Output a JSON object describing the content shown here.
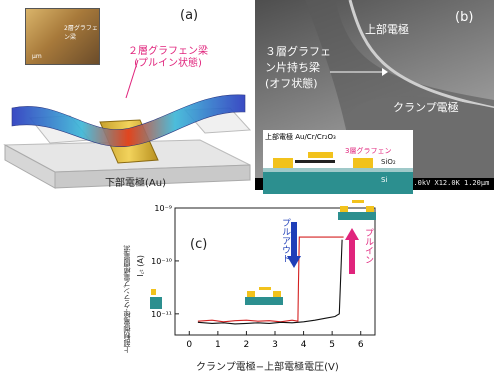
{
  "panel_a": {
    "label": "(a)",
    "inset_text_top": "2層グラフェン梁",
    "inset_text_um": "μm",
    "beam_label_line1": "２層グラフェン梁",
    "beam_label_line2": "(プルイン状態)",
    "electrode_label": "下部電極(Au)"
  },
  "panel_b": {
    "label": "(b)",
    "beam_text_line1": "３層グラフェ",
    "beam_text_line2": "ン片持ち梁",
    "beam_text_line3": "(オフ状態)",
    "top_electrode": "上部電極",
    "clamp_electrode": "クランプ電極",
    "scale_text": "10.0kV  X12.0K  1.20μm",
    "cross_section_electrode": "上部電極 Au/Cr/Cr₂O₃",
    "cross_section_graphene": "3層グラフェン",
    "cross_section_sio2": "SiO₂",
    "cross_section_si": "Si"
  },
  "panel_c": {
    "label": "(c)",
    "ylabel_side": "上部制御電極-クランプ電極間電流",
    "ylabel_symbol": "I꜀ₜ (A)",
    "xlabel": "クランプ電極−上部電極電圧(V)",
    "y_tick_labels": [
      "10⁻⁹",
      "10⁻¹⁰",
      "10⁻¹¹"
    ],
    "x_tick_labels": [
      "0",
      "1",
      "2",
      "3",
      "4",
      "5",
      "6"
    ],
    "pull_out_label": "プルアウト",
    "pull_in_label": "プルイン"
  },
  "chart_data": {
    "type": "line",
    "xlabel": "クランプ電極−上部電極電圧(V)",
    "ylabel": "I꜀ₜ (A)",
    "xlim": [
      -0.5,
      6.5
    ],
    "ylim": [
      -11.4,
      -9
    ],
    "yscale": "log",
    "series": [
      {
        "color": "#d42020",
        "x": [
          0.3,
          0.8,
          1.2,
          1.6,
          2.0,
          2.4,
          2.8,
          3.2,
          3.6,
          3.8,
          3.82,
          3.85,
          4.5,
          5.0,
          5.3,
          5.4
        ],
        "y": [
          -11.14,
          -11.12,
          -11.15,
          -11.13,
          -11.12,
          -11.14,
          -11.13,
          -11.15,
          -11.12,
          -11.14,
          -10.5,
          -9.55,
          -9.55,
          -9.55,
          -9.55,
          -9.55
        ]
      },
      {
        "color": "#111111",
        "x": [
          0.3,
          0.8,
          1.2,
          1.6,
          2.0,
          2.4,
          2.8,
          3.2,
          3.6,
          4.0,
          4.4,
          4.8,
          5.1,
          5.25,
          5.3,
          5.35
        ],
        "y": [
          -11.16,
          -11.18,
          -11.17,
          -11.19,
          -11.18,
          -11.17,
          -11.18,
          -11.16,
          -11.17,
          -11.15,
          -11.12,
          -11.08,
          -11.05,
          -11.0,
          -10.3,
          -9.6
        ]
      }
    ]
  }
}
